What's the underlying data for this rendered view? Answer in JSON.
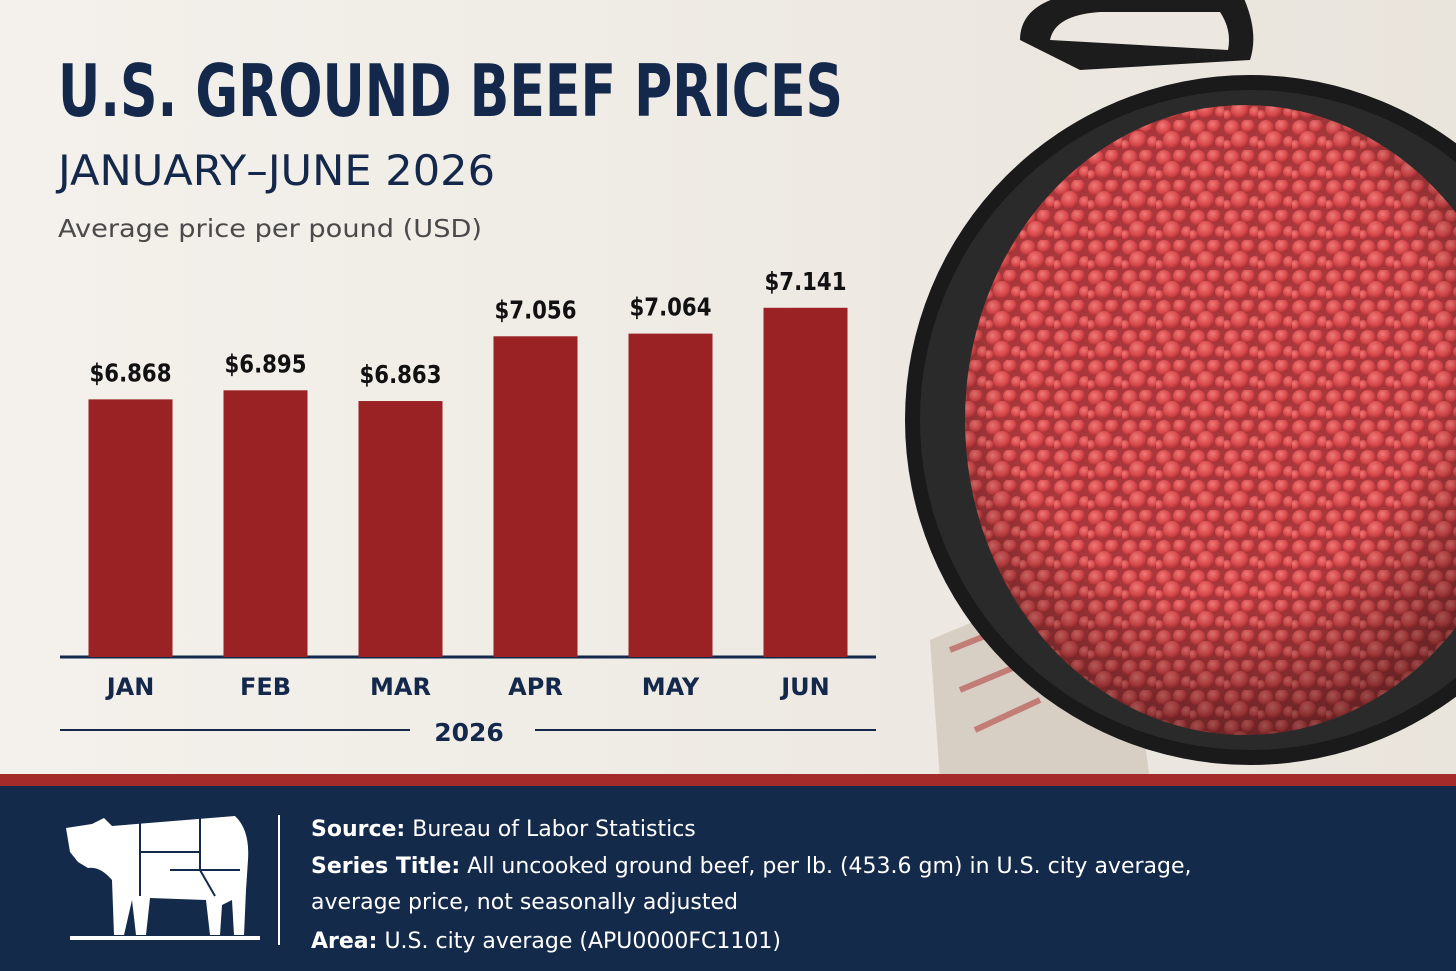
{
  "chart_data": {
    "type": "bar",
    "title": "U.S. GROUND BEEF PRICES",
    "subtitle": "JANUARY–JUNE 2026",
    "y_label": "Average price per pound (USD)",
    "x_label": "2026",
    "categories": [
      "JAN",
      "FEB",
      "MAR",
      "APR",
      "MAY",
      "JUN"
    ],
    "values": [
      6.868,
      6.895,
      6.863,
      7.056,
      7.064,
      7.141
    ],
    "value_labels": [
      "$6.868",
      "$6.895",
      "$6.863",
      "$7.056",
      "$7.064",
      "$7.141"
    ],
    "color": "#9a2124",
    "ylim": [
      6.1,
      7.2
    ]
  },
  "footer": {
    "source_label": "Source:",
    "source": "Bureau of Labor Statistics",
    "series_label": "Series Title:",
    "series_lines": [
      "All uncooked ground beef, per lb. (453.6 gm) in U.S. city average,",
      "average price, not seasonally adjusted"
    ],
    "area_label": "Area:",
    "area": "U.S. city average (APU0000FC1101)"
  }
}
